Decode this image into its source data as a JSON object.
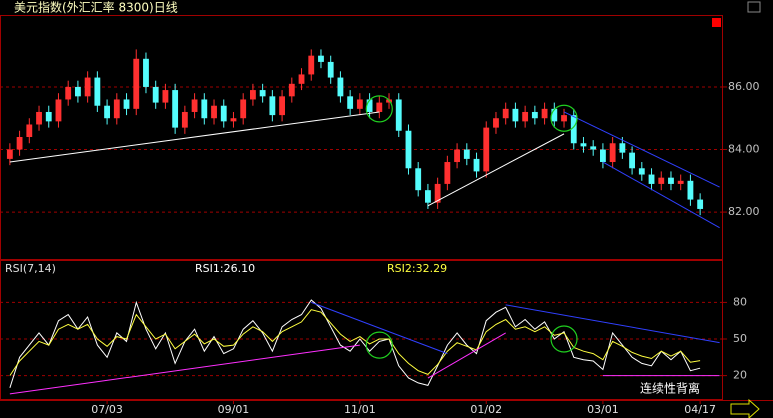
{
  "chart_data": {
    "type": "candlestick",
    "title": "美元指数(外汇汇率 8300)日线",
    "categories": [
      null,
      null,
      null,
      null,
      null,
      null,
      null,
      null,
      null,
      null,
      "07/03",
      null,
      null,
      null,
      null,
      null,
      null,
      null,
      null,
      null,
      null,
      null,
      null,
      "09/01",
      null,
      null,
      null,
      null,
      null,
      null,
      null,
      null,
      null,
      null,
      null,
      null,
      "11/01",
      null,
      null,
      null,
      null,
      null,
      null,
      null,
      null,
      null,
      null,
      null,
      null,
      "01/02",
      null,
      null,
      null,
      null,
      null,
      null,
      null,
      null,
      null,
      null,
      null,
      "03/01",
      null,
      null,
      null,
      null,
      null,
      null,
      null,
      null,
      null,
      "04/17"
    ],
    "open": [
      83.7,
      84.0,
      84.4,
      84.8,
      85.2,
      84.9,
      85.6,
      86.0,
      85.7,
      86.3,
      85.4,
      85.0,
      85.6,
      85.3,
      86.9,
      86.0,
      85.5,
      85.9,
      84.7,
      85.2,
      85.6,
      85.0,
      85.4,
      84.9,
      85.0,
      85.6,
      85.9,
      85.7,
      85.1,
      85.7,
      86.1,
      86.4,
      87.0,
      86.8,
      86.3,
      85.7,
      85.3,
      85.6,
      85.2,
      85.5,
      85.6,
      84.6,
      83.4,
      82.7,
      82.3,
      82.9,
      83.6,
      84.0,
      83.7,
      83.3,
      84.7,
      85.0,
      85.3,
      84.9,
      85.2,
      85.0,
      85.3,
      84.9,
      85.1,
      84.2,
      84.1,
      84.0,
      83.6,
      84.2,
      83.9,
      83.4,
      83.2,
      82.9,
      83.1,
      82.9,
      83.0,
      82.4
    ],
    "high": [
      84.2,
      84.6,
      85.0,
      85.4,
      85.4,
      85.8,
      86.2,
      86.2,
      86.5,
      86.5,
      85.6,
      85.8,
      85.8,
      87.2,
      87.1,
      86.2,
      86.1,
      86.1,
      85.4,
      85.8,
      85.8,
      85.6,
      85.6,
      85.2,
      85.8,
      86.1,
      86.1,
      85.9,
      85.9,
      86.3,
      86.6,
      87.2,
      87.2,
      87.0,
      86.5,
      85.9,
      85.8,
      85.8,
      85.7,
      85.8,
      85.8,
      84.8,
      83.6,
      82.9,
      83.1,
      83.8,
      84.2,
      84.2,
      83.9,
      84.9,
      85.2,
      85.5,
      85.5,
      85.4,
      85.4,
      85.5,
      85.5,
      85.3,
      85.3,
      84.4,
      84.3,
      84.2,
      84.4,
      84.4,
      84.1,
      83.6,
      83.4,
      83.3,
      83.3,
      83.2,
      83.2,
      82.6
    ],
    "low": [
      83.5,
      83.8,
      84.2,
      84.6,
      84.7,
      84.7,
      85.4,
      85.5,
      85.5,
      85.2,
      84.8,
      84.8,
      85.1,
      85.1,
      85.8,
      85.3,
      85.3,
      84.5,
      84.5,
      85.0,
      84.8,
      84.8,
      84.7,
      84.7,
      84.8,
      85.4,
      85.5,
      84.9,
      84.9,
      85.5,
      85.9,
      86.2,
      86.6,
      86.1,
      85.5,
      85.1,
      85.1,
      85.0,
      85.0,
      85.3,
      84.4,
      83.2,
      82.5,
      82.1,
      82.1,
      82.7,
      83.4,
      83.5,
      83.1,
      83.1,
      84.5,
      84.8,
      84.7,
      84.7,
      84.8,
      84.8,
      84.7,
      84.7,
      84.0,
      83.9,
      83.8,
      83.4,
      83.4,
      83.7,
      83.2,
      83.0,
      82.7,
      82.7,
      82.7,
      82.7,
      82.2,
      81.9
    ],
    "close": [
      84.0,
      84.4,
      84.8,
      85.2,
      84.9,
      85.6,
      86.0,
      85.7,
      86.3,
      85.4,
      85.0,
      85.6,
      85.3,
      86.9,
      86.0,
      85.5,
      85.9,
      84.7,
      85.2,
      85.6,
      85.0,
      85.4,
      84.9,
      85.0,
      85.6,
      85.9,
      85.7,
      85.1,
      85.7,
      86.1,
      86.4,
      87.0,
      86.8,
      86.3,
      85.7,
      85.3,
      85.6,
      85.2,
      85.5,
      85.6,
      84.6,
      83.4,
      82.7,
      82.3,
      82.9,
      83.6,
      84.0,
      83.7,
      83.3,
      84.7,
      85.0,
      85.3,
      84.9,
      85.2,
      85.0,
      85.3,
      84.9,
      85.1,
      84.2,
      84.1,
      84.0,
      83.6,
      84.2,
      83.9,
      83.4,
      83.2,
      82.9,
      83.1,
      82.9,
      83.0,
      82.4,
      82.1
    ],
    "up_color": "#ff3030",
    "down_color": "#54fcfc",
    "ylim": [
      80.5,
      88.3
    ],
    "yticks": [
      {
        "value": 86,
        "label": "86.00"
      },
      {
        "value": 84,
        "label": "84.00"
      },
      {
        "value": 82,
        "label": "82.00"
      }
    ],
    "grid": true,
    "trendlines": [
      {
        "color": "#ffffff",
        "x": [
          0,
          38
        ],
        "y": [
          83.6,
          85.2
        ]
      },
      {
        "color": "#ffffff",
        "x": [
          43,
          57
        ],
        "y": [
          82.2,
          84.5
        ]
      },
      {
        "color": "#3040ff",
        "x": [
          57,
          73
        ],
        "y": [
          85.2,
          82.8
        ]
      },
      {
        "color": "#3040ff",
        "x": [
          61,
          73
        ],
        "y": [
          83.6,
          81.5
        ]
      }
    ],
    "circles": [
      {
        "x": 38,
        "y": 85.3
      },
      {
        "x": 57,
        "y": 85.0
      }
    ],
    "indicator": {
      "type": "line",
      "title": "RSI(7,14)",
      "series": [
        {
          "name": "RSI1:26.10",
          "color": "#ffffff",
          "values": [
            10,
            35,
            45,
            55,
            45,
            65,
            70,
            58,
            68,
            45,
            35,
            55,
            48,
            80,
            58,
            42,
            55,
            30,
            48,
            58,
            40,
            52,
            38,
            42,
            58,
            65,
            55,
            40,
            60,
            66,
            70,
            82,
            75,
            60,
            45,
            40,
            50,
            40,
            48,
            50,
            28,
            18,
            14,
            12,
            28,
            45,
            55,
            45,
            38,
            65,
            72,
            76,
            60,
            66,
            58,
            64,
            50,
            56,
            35,
            33,
            32,
            25,
            55,
            45,
            35,
            30,
            28,
            40,
            33,
            40,
            24,
            26.1
          ]
        },
        {
          "name": "RSI2:32.29",
          "color": "#ffff40",
          "values": [
            20,
            32,
            40,
            48,
            45,
            58,
            62,
            58,
            62,
            50,
            44,
            52,
            50,
            70,
            60,
            50,
            54,
            42,
            48,
            54,
            46,
            50,
            44,
            45,
            54,
            60,
            56,
            48,
            56,
            60,
            64,
            74,
            72,
            63,
            54,
            48,
            52,
            46,
            50,
            50,
            38,
            30,
            24,
            21,
            29,
            40,
            47,
            44,
            41,
            56,
            62,
            66,
            58,
            60,
            56,
            60,
            53,
            55,
            43,
            40,
            38,
            33,
            48,
            44,
            39,
            36,
            34,
            40,
            36,
            40,
            31,
            32.29
          ]
        }
      ],
      "ylim": [
        0,
        100
      ],
      "yticks": [
        80,
        50,
        20
      ],
      "trendlines": [
        {
          "color": "#ff30ff",
          "x": [
            0,
            36
          ],
          "y": [
            5,
            45
          ]
        },
        {
          "color": "#ff30ff",
          "x": [
            43,
            51
          ],
          "y": [
            18,
            55
          ]
        },
        {
          "color": "#3040ff",
          "x": [
            31,
            45
          ],
          "y": [
            80,
            38
          ]
        },
        {
          "color": "#3040ff",
          "x": [
            51,
            73
          ],
          "y": [
            78,
            47
          ]
        },
        {
          "color": "#ff30ff",
          "x": [
            61,
            73
          ],
          "y": [
            20,
            20
          ]
        }
      ],
      "circles": [
        {
          "x": 38,
          "y": 45
        },
        {
          "x": 57,
          "y": 50
        }
      ],
      "annotation": "连续性背离"
    }
  }
}
